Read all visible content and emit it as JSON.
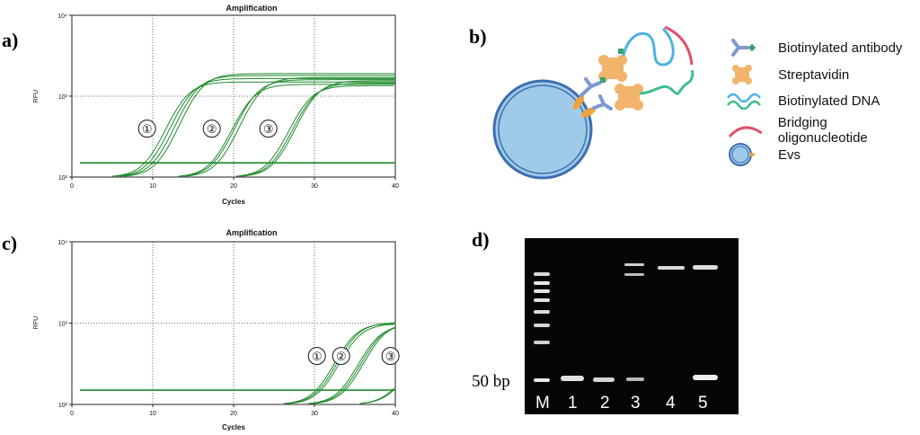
{
  "panels": {
    "a": {
      "letter": "a)"
    },
    "b": {
      "letter": "b)"
    },
    "c": {
      "letter": "c)"
    },
    "d": {
      "letter": "d)"
    }
  },
  "chart_data": [
    {
      "type": "line",
      "panel": "a)",
      "title": "Amplification",
      "xlabel": "Cycles",
      "ylabel": "RFU",
      "xlim": [
        0,
        40
      ],
      "ylim_log10": [
        2,
        4
      ],
      "log_scale_y": true,
      "grid": "dotted",
      "x_ticks": [
        "0",
        "10",
        "20",
        "30",
        "40"
      ],
      "y_ticks": [
        "10²",
        "10³",
        "10⁴"
      ],
      "threshold": 150,
      "groups": [
        {
          "label": "①",
          "ct": 9.5,
          "plateau": [
            1500,
            1650,
            1800,
            1900
          ],
          "spread": [
            -0.5,
            0,
            0.5,
            1.0
          ]
        },
        {
          "label": "②",
          "ct": 17.5,
          "plateau": [
            1400,
            1600,
            1700
          ],
          "spread": [
            -0.3,
            0,
            0.5
          ]
        },
        {
          "label": "③",
          "ct": 24.5,
          "plateau": [
            1350,
            1450,
            1550
          ],
          "spread": [
            -0.2,
            0.2,
            0.5
          ]
        }
      ]
    },
    {
      "type": "line",
      "panel": "c)",
      "title": "Amplification",
      "xlabel": "Cycles",
      "ylabel": "RFU",
      "xlim": [
        0,
        40
      ],
      "ylim_log10": [
        2,
        4
      ],
      "log_scale_y": true,
      "grid": "dotted",
      "x_ticks": [
        "0",
        "10",
        "20",
        "30",
        "40"
      ],
      "y_ticks": [
        "10²",
        "10³",
        "10⁴"
      ],
      "threshold": 150,
      "groups": [
        {
          "label": "①",
          "ct": 30.5,
          "plateau": [
            1000,
            1020,
            980
          ],
          "spread": [
            -0.3,
            0,
            0.3
          ]
        },
        {
          "label": "②",
          "ct": 33.5,
          "plateau": [
            950,
            990,
            1010
          ],
          "spread": [
            -0.3,
            0,
            0.3
          ]
        },
        {
          "label": "③",
          "ct": 39.6,
          "plateau": [
            400,
            420
          ],
          "spread": [
            0,
            0.2
          ]
        }
      ]
    }
  ],
  "legend": {
    "items": [
      {
        "icon": "antibody-icon",
        "label": "Biotinylated antibody"
      },
      {
        "icon": "streptavidin-icon",
        "label": "Streptavidin"
      },
      {
        "icon": "dna-icon",
        "label": "Biotinylated DNA"
      },
      {
        "icon": "oligo-icon",
        "label": "Bridging oligonucleotide"
      },
      {
        "icon": "ev-icon",
        "label": "Evs"
      }
    ]
  },
  "gel": {
    "marker_label": "50 bp",
    "lanes": [
      "M",
      "1",
      "2",
      "3",
      "4",
      "5"
    ]
  },
  "colors": {
    "curve": "#1f8a2a",
    "threshold": "#1f8a2a",
    "ev_fill": "#9fcbe8",
    "ev_ring": "#3d6fb0",
    "streptavidin": "#f2b46a",
    "antibody": "#7f98d0",
    "dna_blue": "#4db3e0",
    "dna_green": "#3fbf8a",
    "oligo": "#e0506a",
    "biotin": "#3aa07c",
    "gel_bg": "#050505",
    "band": "#e8e8e8"
  }
}
